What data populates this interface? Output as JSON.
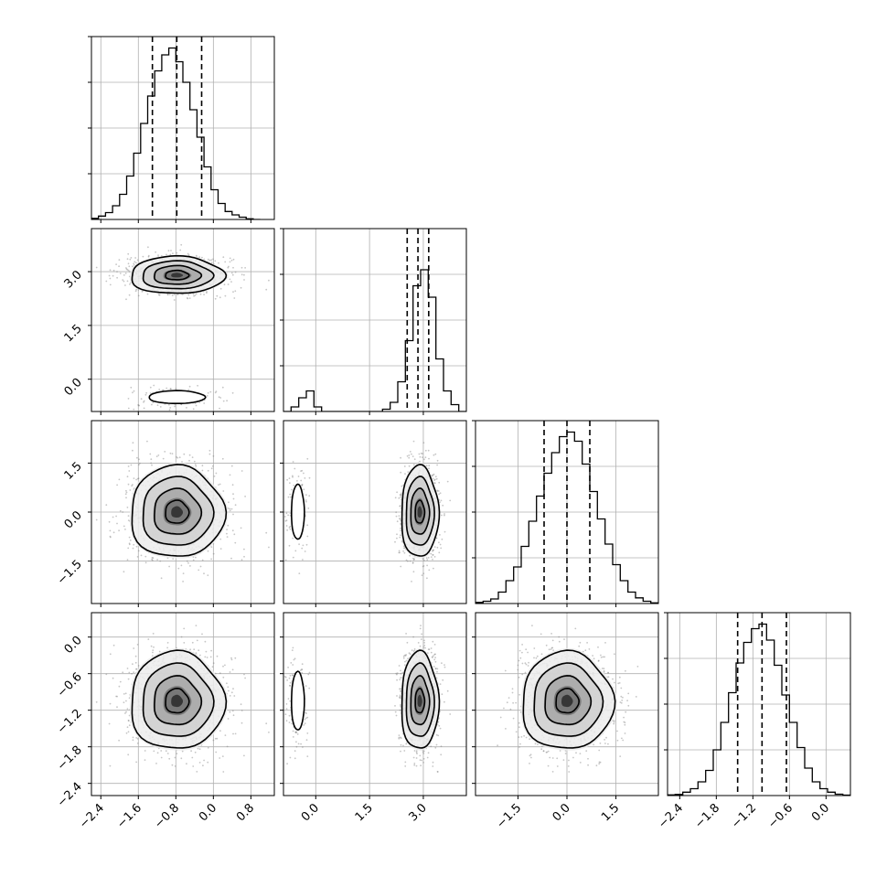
{
  "chart_data": {
    "type": "corner",
    "title": "",
    "parameters": [
      {
        "label": "",
        "range": [
          -2.6,
          1.3
        ],
        "hist_range": [
          -2.6,
          1.0
        ],
        "hist_counts": [
          0.5,
          1.5,
          3,
          6,
          11,
          19,
          29,
          42,
          54,
          65,
          72,
          75,
          69,
          60,
          48,
          36,
          23,
          13,
          7,
          3.5,
          2,
          1,
          0.3,
          0
        ],
        "quantiles": [
          -1.3,
          -0.78,
          -0.25
        ],
        "ticks": [
          -2.4,
          -1.6,
          -0.8,
          0.0,
          0.8
        ],
        "tick_labels": [
          "−2.4",
          "−1.6",
          "−0.8",
          "0.0",
          "0.8"
        ],
        "center": -0.78,
        "sigma": 0.5
      },
      {
        "label": "",
        "range": [
          -0.9,
          4.2
        ],
        "hist_range": [
          -0.9,
          4.2
        ],
        "hist_counts": [
          0,
          2,
          6,
          9,
          2,
          0,
          0,
          0,
          0,
          0,
          0,
          0,
          0,
          1,
          4,
          13,
          31,
          55,
          62,
          50,
          23,
          9,
          3,
          0
        ],
        "quantiles": [
          2.55,
          2.85,
          3.15
        ],
        "ticks": [
          0.0,
          1.5,
          3.0
        ],
        "tick_labels": [
          "0.0",
          "1.5",
          "3.0"
        ],
        "modes": [
          {
            "center": -0.5,
            "sigma": 0.15,
            "weight": 0.1
          },
          {
            "center": 2.9,
            "sigma": 0.26,
            "weight": 0.9
          }
        ]
      },
      {
        "label": "",
        "range": [
          -2.8,
          2.8
        ],
        "hist_range": [
          -2.8,
          2.8
        ],
        "hist_counts": [
          0.5,
          1,
          2,
          5,
          10,
          16,
          25,
          36,
          47,
          57,
          66,
          73,
          75,
          71,
          61,
          49,
          37,
          26,
          17,
          10,
          5,
          2.5,
          1,
          0.3
        ],
        "quantiles": [
          -0.7,
          0.0,
          0.7
        ],
        "ticks": [
          -1.5,
          0.0,
          1.5
        ],
        "tick_labels": [
          "−1.5",
          "0.0",
          "1.5"
        ],
        "center": 0.0,
        "sigma": 0.7
      },
      {
        "label": "",
        "range": [
          -2.6,
          0.4
        ],
        "hist_range": [
          -2.6,
          0.4
        ],
        "hist_counts": [
          0.3,
          0.5,
          1.5,
          3,
          6,
          11,
          20,
          32,
          45,
          58,
          67,
          73,
          75,
          68,
          57,
          44,
          32,
          21,
          12,
          6,
          3,
          1.5,
          0.6,
          0.2
        ],
        "quantiles": [
          -1.45,
          -1.05,
          -0.65
        ],
        "ticks": [
          -2.4,
          -1.8,
          -1.2,
          -0.6,
          0.0
        ],
        "tick_labels": [
          "−2.4",
          "−1.8",
          "−1.2",
          "−0.6",
          "0.0"
        ],
        "center": -1.05,
        "sigma": 0.4
      }
    ],
    "hist_ylim": [
      0,
      80
    ],
    "hist_yticks": [
      20,
      40,
      60,
      80
    ],
    "grid": true,
    "scatter_color": "#808080",
    "line_color": "#000000",
    "contour_levels": [
      "0.5σ",
      "1σ",
      "1.5σ",
      "2σ"
    ]
  }
}
